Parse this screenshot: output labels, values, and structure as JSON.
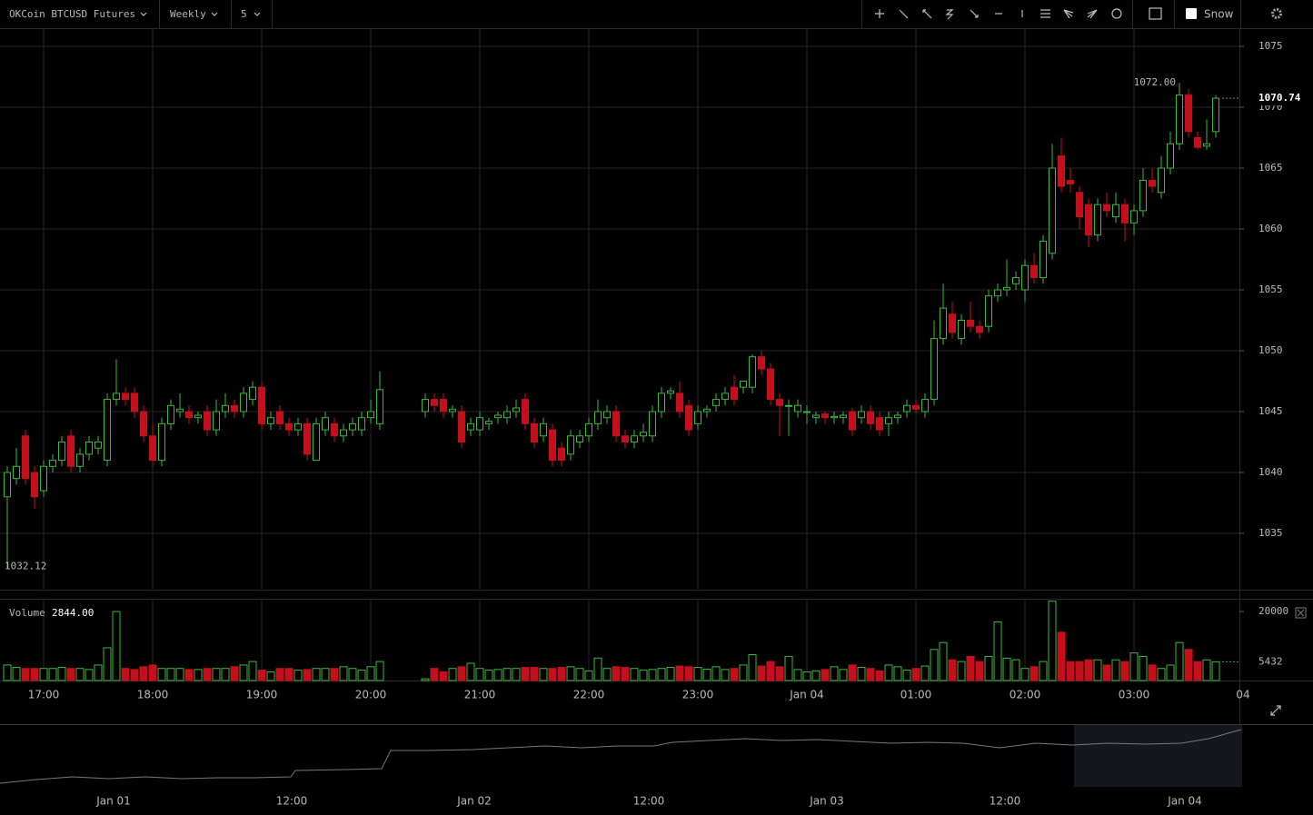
{
  "toolbar": {
    "symbol": "OKCoin BTCUSD Futures",
    "range": "Weekly",
    "interval": "5",
    "toggle": "Snow"
  },
  "navigator": {
    "labels": [
      "Jan 01",
      "12:00",
      "Jan 02",
      "12:00",
      "Jan 03",
      "12:00",
      "Jan 04"
    ]
  },
  "chart_data": [
    {
      "type": "candlestick",
      "up_color": "#3fb53f",
      "down_color": "#c4101c",
      "ylim": [
        1030.37,
        1076.42
      ],
      "yticks": [
        1035,
        1040,
        1045,
        1050,
        1055,
        1060,
        1065,
        1070,
        1075
      ],
      "grid": true,
      "annotations": [
        {
          "value": 1072,
          "label": "1072.00"
        },
        {
          "value": 1032.12,
          "label": "1032.12"
        }
      ],
      "last": {
        "value": 1070.74,
        "label": "1070.74"
      },
      "values": [
        [
          1038,
          1040.5,
          1032.12,
          1040
        ],
        [
          1039.5,
          1042,
          1039,
          1040.5
        ],
        [
          1043,
          1043.5,
          1039,
          1039.5
        ],
        [
          1040,
          1040.5,
          1037,
          1038
        ],
        [
          1038.5,
          1041,
          1038,
          1040.5
        ],
        [
          1040.5,
          1041.5,
          1040,
          1041
        ],
        [
          1041,
          1043,
          1040.5,
          1042.5
        ],
        [
          1043,
          1043.5,
          1040,
          1040.5
        ],
        [
          1040.5,
          1042,
          1040,
          1041.5
        ],
        [
          1041.5,
          1043,
          1041,
          1042.5
        ],
        [
          1042,
          1043,
          1041.5,
          1042.5
        ],
        [
          1041,
          1046.5,
          1040.5,
          1046
        ],
        [
          1046,
          1049.3,
          1045.5,
          1046.5
        ],
        [
          1046.5,
          1047,
          1045.5,
          1046
        ],
        [
          1046.5,
          1047,
          1044.5,
          1045
        ],
        [
          1045,
          1045.5,
          1042.5,
          1043
        ],
        [
          1043,
          1044,
          1040.5,
          1041
        ],
        [
          1041,
          1044.5,
          1040.5,
          1044
        ],
        [
          1044,
          1046,
          1043.5,
          1045.5
        ],
        [
          1045,
          1046.5,
          1044.5,
          1045.2
        ],
        [
          1045,
          1045.5,
          1044,
          1044.5
        ],
        [
          1044.5,
          1045,
          1044,
          1044.7
        ],
        [
          1045,
          1045.5,
          1043,
          1043.5
        ],
        [
          1043.5,
          1046,
          1043,
          1045
        ],
        [
          1045,
          1046.5,
          1044.5,
          1045.5
        ],
        [
          1045.5,
          1046,
          1044.5,
          1045
        ],
        [
          1045,
          1047,
          1044.5,
          1046.5
        ],
        [
          1046,
          1047.5,
          1045.5,
          1047
        ],
        [
          1047,
          1047.5,
          1043.5,
          1044
        ],
        [
          1044,
          1045,
          1043.5,
          1044.5
        ],
        [
          1045,
          1045.5,
          1043.5,
          1044
        ],
        [
          1044,
          1044.5,
          1043,
          1043.5
        ],
        [
          1043.5,
          1044.5,
          1043,
          1044
        ],
        [
          1044,
          1044.5,
          1041,
          1041.5
        ],
        [
          1041,
          1044.5,
          1041,
          1044
        ],
        [
          1043.5,
          1045,
          1043,
          1044.5
        ],
        [
          1044,
          1044.5,
          1042.5,
          1043
        ],
        [
          1043,
          1044,
          1042.5,
          1043.5
        ],
        [
          1043.5,
          1044.5,
          1043,
          1044
        ],
        [
          1043.5,
          1045,
          1043,
          1044.5
        ],
        [
          1044.5,
          1046,
          1044,
          1045
        ],
        [
          1044,
          1048.3,
          1043.5,
          1046.8
        ],
        null,
        null,
        null,
        null,
        [
          1045,
          1046.5,
          1044.5,
          1046
        ],
        [
          1046,
          1046.5,
          1045,
          1045.5
        ],
        [
          1046,
          1046.5,
          1044.5,
          1045
        ],
        [
          1045,
          1045.5,
          1044.5,
          1045.2
        ],
        [
          1045,
          1045.5,
          1042,
          1042.5
        ],
        [
          1043.5,
          1044.5,
          1043,
          1044
        ],
        [
          1043.5,
          1045,
          1043,
          1044.5
        ],
        [
          1044,
          1044.5,
          1043.5,
          1044.2
        ],
        [
          1044.5,
          1045,
          1044,
          1044.7
        ],
        [
          1044.5,
          1045.5,
          1044,
          1045
        ],
        [
          1045,
          1046,
          1044.5,
          1045.3
        ],
        [
          1046,
          1046.5,
          1043.5,
          1044
        ],
        [
          1044,
          1044.5,
          1042,
          1042.5
        ],
        [
          1043,
          1044.5,
          1042.5,
          1044
        ],
        [
          1043.5,
          1044,
          1040.5,
          1041
        ],
        [
          1042,
          1042.5,
          1040.5,
          1041
        ],
        [
          1041.5,
          1043.5,
          1041,
          1043
        ],
        [
          1042.5,
          1043.5,
          1042,
          1043
        ],
        [
          1043,
          1044.5,
          1042.5,
          1044
        ],
        [
          1044,
          1046,
          1043.5,
          1045
        ],
        [
          1044.5,
          1045.5,
          1044,
          1045
        ],
        [
          1045,
          1045.5,
          1042.5,
          1043
        ],
        [
          1043,
          1043.5,
          1042,
          1042.5
        ],
        [
          1042.5,
          1043.5,
          1042,
          1043
        ],
        [
          1043,
          1044,
          1042.5,
          1043.3
        ],
        [
          1043,
          1045.5,
          1042.5,
          1045
        ],
        [
          1045,
          1047,
          1044.5,
          1046.5
        ],
        [
          1046.5,
          1047,
          1046,
          1046.7
        ],
        [
          1046.5,
          1047.5,
          1044.5,
          1045
        ],
        [
          1045.5,
          1046,
          1043,
          1043.5
        ],
        [
          1044,
          1045.5,
          1043.5,
          1045
        ],
        [
          1045,
          1045.5,
          1044.5,
          1045.2
        ],
        [
          1045.5,
          1046.5,
          1045,
          1046
        ],
        [
          1046,
          1047,
          1045.5,
          1046.5
        ],
        [
          1047,
          1048,
          1045.5,
          1046
        ],
        [
          1047,
          1047.5,
          1046.5,
          1047.5
        ],
        [
          1047,
          1049.7,
          1046.5,
          1049.5
        ],
        [
          1049.5,
          1050,
          1048,
          1048.5
        ],
        [
          1048.5,
          1049,
          1045.5,
          1046
        ],
        [
          1046,
          1046.5,
          1043,
          1045.5
        ],
        [
          1045.5,
          1046,
          1043,
          1045.5
        ],
        [
          1045,
          1046,
          1044.5,
          1045.5
        ],
        [
          1045,
          1045.5,
          1044,
          1045
        ],
        [
          1044.5,
          1045,
          1044,
          1044.7
        ],
        [
          1044.8,
          1045,
          1044,
          1044.5
        ],
        [
          1044.5,
          1045,
          1044,
          1044.6
        ],
        [
          1044.5,
          1045,
          1044,
          1044.7
        ],
        [
          1045,
          1045.3,
          1043,
          1043.5
        ],
        [
          1044.5,
          1045.5,
          1044,
          1045
        ],
        [
          1045,
          1045.5,
          1043.5,
          1044
        ],
        [
          1044.5,
          1045,
          1043,
          1043.5
        ],
        [
          1044,
          1045,
          1043,
          1044.5
        ],
        [
          1044.5,
          1045,
          1044,
          1044.7
        ],
        [
          1045,
          1046,
          1044.5,
          1045.5
        ],
        [
          1045.5,
          1046,
          1044.8,
          1045.2
        ],
        [
          1045,
          1046.5,
          1044.5,
          1046
        ],
        [
          1046,
          1052.5,
          1045.5,
          1051
        ],
        [
          1051,
          1055.5,
          1050.5,
          1053.5
        ],
        [
          1053,
          1054,
          1051,
          1051.5
        ],
        [
          1051,
          1053,
          1050.5,
          1052.5
        ],
        [
          1052.5,
          1054,
          1051.5,
          1052
        ],
        [
          1052,
          1052.5,
          1051,
          1051.5
        ],
        [
          1052,
          1055,
          1051.5,
          1054.5
        ],
        [
          1054.5,
          1055.5,
          1054,
          1055
        ],
        [
          1055,
          1057.5,
          1054.5,
          1055.2
        ],
        [
          1055.5,
          1056.5,
          1055,
          1056
        ],
        [
          1055,
          1057.5,
          1054,
          1057
        ],
        [
          1057,
          1058,
          1055.5,
          1056
        ],
        [
          1056,
          1059.5,
          1055.5,
          1059
        ],
        [
          1058,
          1067,
          1057.5,
          1065
        ],
        [
          1066,
          1067.5,
          1063,
          1063.5
        ],
        [
          1064,
          1065,
          1063,
          1063.7
        ],
        [
          1063,
          1063.5,
          1060,
          1061
        ],
        [
          1062,
          1062.5,
          1058.5,
          1059.5
        ],
        [
          1059.5,
          1062.5,
          1059,
          1062
        ],
        [
          1062,
          1063,
          1061,
          1061.5
        ],
        [
          1061,
          1063,
          1060.5,
          1062
        ],
        [
          1062,
          1062.5,
          1059,
          1060.5
        ],
        [
          1060.5,
          1062,
          1059.5,
          1061.5
        ],
        [
          1061.5,
          1065,
          1061,
          1064
        ],
        [
          1064,
          1065,
          1063,
          1063.5
        ],
        [
          1063,
          1066,
          1062.5,
          1065
        ],
        [
          1065,
          1068,
          1064.5,
          1067
        ],
        [
          1067,
          1072,
          1066.5,
          1071
        ],
        [
          1071,
          1071.5,
          1067.5,
          1068
        ],
        [
          1067.5,
          1068,
          1066.5,
          1066.7
        ],
        [
          1066.8,
          1069,
          1066.5,
          1067
        ],
        [
          1068,
          1071,
          1067.5,
          1070.74
        ],
        null,
        null,
        null
      ]
    },
    {
      "type": "bar",
      "title": "Volume",
      "legend_value": {
        "value": 2844,
        "label": "2844.00"
      },
      "ylim": [
        0,
        23700
      ],
      "yticks": [
        20000
      ],
      "current": 5432,
      "categories": [
        null,
        null,
        null,
        null,
        "17:00",
        null,
        null,
        null,
        null,
        null,
        null,
        null,
        null,
        null,
        null,
        null,
        "18:00",
        null,
        null,
        null,
        null,
        null,
        null,
        null,
        null,
        null,
        null,
        null,
        "19:00",
        null,
        null,
        null,
        null,
        null,
        null,
        null,
        null,
        null,
        null,
        null,
        "20:00",
        null,
        null,
        null,
        null,
        null,
        null,
        null,
        null,
        null,
        null,
        null,
        "21:00",
        null,
        null,
        null,
        null,
        null,
        null,
        null,
        null,
        null,
        null,
        null,
        "22:00",
        null,
        null,
        null,
        null,
        null,
        null,
        null,
        null,
        null,
        null,
        null,
        "23:00",
        null,
        null,
        null,
        null,
        null,
        null,
        null,
        null,
        null,
        null,
        null,
        "Jan 04",
        null,
        null,
        null,
        null,
        null,
        null,
        null,
        null,
        null,
        null,
        null,
        "01:00",
        null,
        null,
        null,
        null,
        null,
        null,
        null,
        null,
        null,
        null,
        null,
        "02:00",
        null,
        null,
        null,
        null,
        null,
        null,
        null,
        null,
        null,
        null,
        null,
        "03:00",
        null,
        null,
        null,
        null,
        null,
        null,
        null,
        null,
        null,
        null,
        null,
        "04"
      ],
      "values": [
        4500,
        3800,
        3500,
        3500,
        3500,
        3500,
        3800,
        3500,
        3500,
        3200,
        4500,
        9500,
        20000,
        3500,
        3200,
        4000,
        4500,
        3500,
        3500,
        3500,
        3200,
        3200,
        3500,
        3500,
        3500,
        4000,
        4500,
        5500,
        3000,
        2500,
        3500,
        3500,
        3000,
        3200,
        3500,
        3500,
        3500,
        4000,
        3500,
        3000,
        4000,
        5500,
        null,
        null,
        null,
        null,
        500,
        3500,
        2500,
        3500,
        4000,
        5000,
        3500,
        3000,
        3200,
        3500,
        3500,
        3800,
        3800,
        3500,
        3500,
        3800,
        4000,
        3500,
        2800,
        6500,
        3500,
        4000,
        3800,
        3500,
        3000,
        3200,
        3500,
        3800,
        4200,
        4000,
        3800,
        3300,
        4000,
        3200,
        3500,
        4500,
        7500,
        4200,
        5500,
        4000,
        7000,
        3200,
        2500,
        2800,
        3200,
        4000,
        3200,
        4500,
        3800,
        3500,
        2800,
        4500,
        4000,
        3000,
        3500,
        4200,
        9000,
        11000,
        6000,
        5500,
        7000,
        5500,
        7000,
        17000,
        6500,
        6000,
        3500,
        4000,
        5500,
        23000,
        14000,
        5500,
        5500,
        6000,
        6000,
        4500,
        6000,
        5500,
        8000,
        7000,
        4500,
        3500,
        4500,
        11000,
        9000,
        5500,
        6000,
        5432,
        null,
        null,
        null
      ]
    }
  ]
}
